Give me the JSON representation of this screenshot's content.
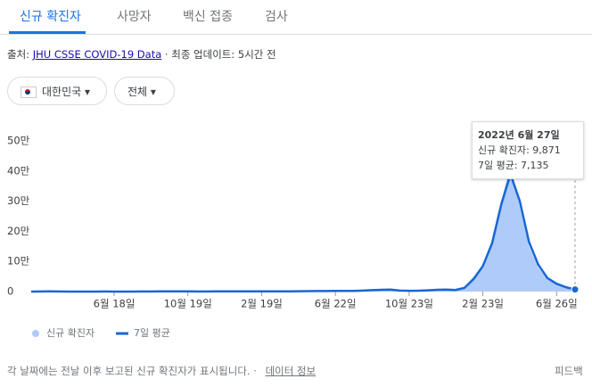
{
  "tabs": [
    "신규 확진자",
    "사망자",
    "백신 접종",
    "검사"
  ],
  "source": {
    "prefix": "출처:",
    "link": "JHU CSSE COVID-19 Data",
    "suffix": "· 최종 업데이트: 5시간 전"
  },
  "filters": [
    "대한민국",
    "전체"
  ],
  "tooltip": {
    "date": "2022년 6월 27일",
    "lines": [
      "신규 확진자: 9,871",
      "7일 평균: 7,135"
    ]
  },
  "footer": {
    "note": "각 날짜에는 전날 이후 보고된 신규 확진자가 표시됩니다. ·",
    "link": "데이터 정보",
    "feedback": "피드백"
  },
  "chart_data": {
    "type": "line",
    "categories": [
      null,
      null,
      null,
      null,
      null,
      null,
      null,
      null,
      null,
      "6월 18일",
      null,
      null,
      null,
      null,
      null,
      null,
      null,
      "10월 19일",
      null,
      null,
      null,
      null,
      null,
      null,
      null,
      "2월 19일",
      null,
      null,
      null,
      null,
      null,
      null,
      null,
      "6월 22일",
      null,
      null,
      null,
      null,
      null,
      null,
      null,
      "10월 23일",
      null,
      null,
      null,
      null,
      null,
      null,
      null,
      "2월 23일",
      null,
      null,
      null,
      null,
      null,
      null,
      null,
      "6월 26일",
      null,
      null
    ],
    "series": [
      {
        "name": "신규 확진자",
        "color": "#aecbfa",
        "area": true,
        "values": [
          50,
          300,
          600,
          100,
          50,
          40,
          50,
          100,
          300,
          100,
          100,
          100,
          200,
          400,
          800,
          1000,
          700,
          500,
          400,
          400,
          500,
          500,
          600,
          700,
          600,
          500,
          500,
          600,
          700,
          1200,
          1500,
          1700,
          1800,
          2000,
          2200,
          2500,
          3500,
          5000,
          6000,
          7000,
          3000,
          2500,
          3000,
          4000,
          6000,
          7000,
          5000,
          15000,
          50000,
          90000,
          170000,
          300000,
          420000,
          280000,
          150000,
          80000,
          40000,
          25000,
          15000,
          9871
        ]
      },
      {
        "name": "7일 평균",
        "color": "#1967d2",
        "area": false,
        "values": [
          100,
          250,
          450,
          200,
          80,
          50,
          60,
          90,
          250,
          120,
          100,
          110,
          200,
          380,
          750,
          950,
          720,
          520,
          420,
          410,
          480,
          510,
          590,
          680,
          610,
          520,
          510,
          590,
          690,
          1100,
          1450,
          1650,
          1800,
          1950,
          2150,
          2450,
          3300,
          4800,
          5800,
          6700,
          3200,
          2600,
          3000,
          4200,
          5900,
          6800,
          5200,
          12000,
          42000,
          85000,
          160000,
          290000,
          390000,
          300000,
          165000,
          90000,
          45000,
          26000,
          14500,
          7135
        ]
      }
    ],
    "ylim": [
      0,
      500000
    ],
    "yticks": [
      0,
      {
        "value": 100000,
        "label": "10만"
      },
      {
        "value": 200000,
        "label": "20만"
      },
      {
        "value": 300000,
        "label": "30만"
      },
      {
        "value": 400000,
        "label": "40만"
      },
      {
        "value": 500000,
        "label": "50만"
      }
    ],
    "grid": false
  }
}
